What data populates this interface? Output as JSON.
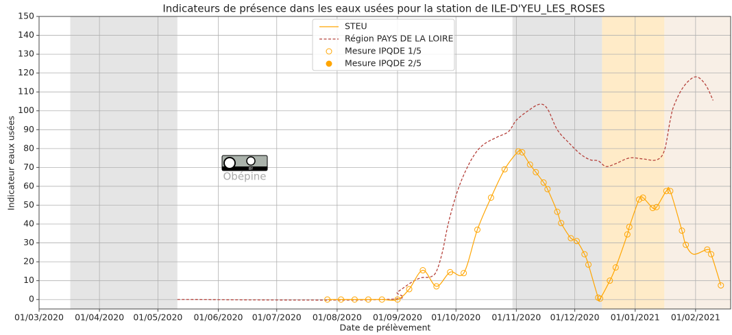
{
  "chart_data": {
    "type": "line",
    "title": "Indicateurs de présence dans les eaux usées pour la station de ILE-D'YEU_LES_ROSES",
    "xlabel": "Date de prélèvement",
    "ylabel": "Indicateur eaux usées",
    "xlim": [
      "2020-03-01",
      "2021-02-19"
    ],
    "ylim": [
      -5,
      150
    ],
    "yticks": [
      0,
      10,
      20,
      30,
      40,
      50,
      60,
      70,
      80,
      90,
      100,
      110,
      120,
      130,
      140,
      150
    ],
    "xticks": [
      {
        "value": "2020-03-01",
        "label": "01/03/2020"
      },
      {
        "value": "2020-04-01",
        "label": "01/04/2020"
      },
      {
        "value": "2020-05-01",
        "label": "01/05/2020"
      },
      {
        "value": "2020-06-01",
        "label": "01/06/2020"
      },
      {
        "value": "2020-07-01",
        "label": "01/07/2020"
      },
      {
        "value": "2020-08-01",
        "label": "01/08/2020"
      },
      {
        "value": "2020-09-01",
        "label": "01/09/2020"
      },
      {
        "value": "2020-10-01",
        "label": "01/10/2020"
      },
      {
        "value": "2020-11-01",
        "label": "01/11/2020"
      },
      {
        "value": "2020-12-01",
        "label": "01/12/2020"
      },
      {
        "value": "2021-01-01",
        "label": "01/01/2021"
      },
      {
        "value": "2021-02-01",
        "label": "01/02/2021"
      }
    ],
    "grid": true,
    "legend": "upper center",
    "spans": [
      {
        "start": "2020-03-17",
        "end": "2020-05-11",
        "color": "#e5e5e5"
      },
      {
        "start": "2020-10-30",
        "end": "2020-12-15",
        "color": "#e5e5e5"
      },
      {
        "start": "2020-12-15",
        "end": "2021-01-16",
        "color": "#ffebc8"
      },
      {
        "start": "2021-01-16",
        "end": "2021-02-19",
        "color": "#f8efe6"
      }
    ],
    "watermark": {
      "text": "Obépine",
      "license": "BY"
    },
    "series": [
      {
        "name": "STEU",
        "color": "#ffa500",
        "style": "solid",
        "x": [
          "2020-07-27",
          "2020-08-03",
          "2020-08-10",
          "2020-08-17",
          "2020-08-24",
          "2020-09-01",
          "2020-09-07",
          "2020-09-14",
          "2020-09-21",
          "2020-09-28",
          "2020-10-05",
          "2020-10-12",
          "2020-10-19",
          "2020-10-26",
          "2020-11-02",
          "2020-11-04",
          "2020-11-08",
          "2020-11-11",
          "2020-11-15",
          "2020-11-17",
          "2020-11-22",
          "2020-11-24",
          "2020-11-29",
          "2020-12-02",
          "2020-12-06",
          "2020-12-08",
          "2020-12-13",
          "2020-12-14",
          "2020-12-19",
          "2020-12-22",
          "2020-12-28",
          "2020-12-29",
          "2021-01-03",
          "2021-01-05",
          "2021-01-10",
          "2021-01-12",
          "2021-01-17",
          "2021-01-19",
          "2021-01-25",
          "2021-01-27",
          "2021-01-31",
          "2021-02-07",
          "2021-02-09",
          "2021-02-14"
        ],
        "values": [
          0,
          0,
          0,
          0,
          0,
          0,
          5.5,
          15.5,
          7,
          14.5,
          14,
          37,
          54,
          69,
          78.5,
          78,
          71.5,
          67.5,
          62,
          58.5,
          46.5,
          40.5,
          32.5,
          31,
          24,
          18.5,
          1,
          0.5,
          10,
          17,
          34.5,
          38.5,
          53,
          54,
          48.5,
          49,
          57.5,
          57.5,
          36.5,
          29,
          24,
          26.5,
          24,
          7.5
        ]
      },
      {
        "name": "Région PAYS DE LA LOIRE",
        "color": "#b5403a",
        "style": "dashed",
        "x": [
          "2020-05-11",
          "2020-08-25",
          "2020-09-01",
          "2020-09-08",
          "2020-09-13",
          "2020-09-18",
          "2020-09-21",
          "2020-09-24",
          "2020-09-27",
          "2020-10-01",
          "2020-10-05",
          "2020-10-10",
          "2020-10-15",
          "2020-10-22",
          "2020-10-28",
          "2020-11-01",
          "2020-11-07",
          "2020-11-13",
          "2020-11-17",
          "2020-11-22",
          "2020-11-28",
          "2020-12-04",
          "2020-12-09",
          "2020-12-13",
          "2020-12-17",
          "2020-12-22",
          "2020-12-29",
          "2021-01-05",
          "2021-01-12",
          "2021-01-16",
          "2021-01-19",
          "2021-01-21",
          "2021-01-26",
          "2021-02-01",
          "2021-02-06",
          "2021-02-10"
        ],
        "values": [
          0,
          0,
          4,
          9,
          11.5,
          12,
          15,
          25,
          40,
          55,
          66,
          76,
          82,
          86,
          89,
          95,
          100,
          103.5,
          101,
          90,
          83,
          77,
          74,
          73.5,
          70.5,
          72,
          75,
          74.5,
          74,
          79,
          95,
          103,
          113,
          118,
          114,
          105.5
        ]
      },
      {
        "name": "Mesure IPQDE 1/5",
        "color": "#ffa500",
        "marker": "hollow",
        "x": [
          "2020-07-27",
          "2020-08-03",
          "2020-08-10",
          "2020-08-17",
          "2020-08-24",
          "2020-09-01",
          "2020-09-07",
          "2020-09-14",
          "2020-09-21",
          "2020-09-28",
          "2020-10-05",
          "2020-10-12",
          "2020-10-19",
          "2020-10-26",
          "2020-11-02",
          "2020-11-04",
          "2020-11-08",
          "2020-11-11",
          "2020-11-15",
          "2020-11-17",
          "2020-11-22",
          "2020-11-24",
          "2020-11-29",
          "2020-12-02",
          "2020-12-06",
          "2020-12-08",
          "2020-12-13",
          "2020-12-14",
          "2020-12-19",
          "2020-12-22",
          "2020-12-28",
          "2020-12-29",
          "2021-01-03",
          "2021-01-05",
          "2021-01-10",
          "2021-01-12",
          "2021-01-17",
          "2021-01-19",
          "2021-01-25",
          "2021-01-27",
          "2021-02-07",
          "2021-02-09",
          "2021-02-14"
        ],
        "values": [
          0,
          0,
          0,
          0,
          0,
          0,
          5.5,
          15.5,
          7,
          14.5,
          14,
          37,
          54,
          69,
          78.5,
          78,
          71.5,
          67.5,
          62,
          58.5,
          46.5,
          40.5,
          32.5,
          31,
          24,
          18.5,
          1,
          0.5,
          10,
          17,
          34.5,
          38.5,
          53,
          54,
          48.5,
          49,
          57.5,
          57.5,
          36.5,
          29,
          26.5,
          24,
          7.5
        ]
      },
      {
        "name": "Mesure IPQDE 2/5",
        "color": "#ffa500",
        "marker": "filled",
        "x": [],
        "values": []
      }
    ]
  }
}
